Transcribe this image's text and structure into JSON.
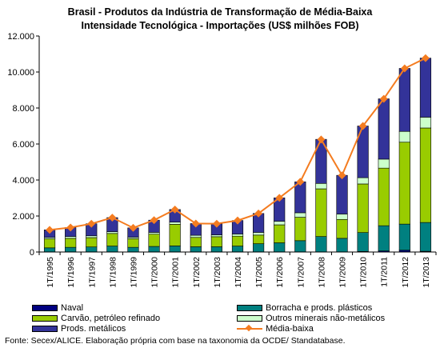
{
  "chart_data": {
    "type": "bar",
    "stacked": true,
    "title_line1": "Brasil - Produtos da Indústria de Transformação de Média-Baixa",
    "title_line2": "Intensidade Tecnológica - Importações (US$ milhões FOB)",
    "categories": [
      "1T/1995",
      "1T/1996",
      "1T/1997",
      "1T/1998",
      "1T/1999",
      "1T/2000",
      "1T/2001",
      "1T/2002",
      "1T/2003",
      "1T/2004",
      "1T/2005",
      "1T/2006",
      "1T/2007",
      "1T/2008",
      "1T/2009",
      "1T/2010",
      "1T/2011",
      "1T/2012",
      "1T/2013"
    ],
    "ylim": [
      0,
      12000
    ],
    "yticks": [
      0,
      2000,
      4000,
      6000,
      8000,
      10000,
      12000
    ],
    "ytick_labels": [
      "0",
      "2.000",
      "4.000",
      "6.000",
      "8.000",
      "10.000",
      "12.000"
    ],
    "grid": false,
    "legend_position": "bottom",
    "series": [
      {
        "name": "Naval",
        "color": "#000080",
        "values": [
          10,
          10,
          10,
          10,
          10,
          10,
          10,
          10,
          10,
          10,
          10,
          10,
          10,
          10,
          10,
          30,
          60,
          100,
          40
        ]
      },
      {
        "name": "Borracha e prods. plásticos",
        "color": "#008080",
        "values": [
          220,
          250,
          270,
          320,
          250,
          300,
          330,
          280,
          280,
          320,
          450,
          500,
          620,
          850,
          750,
          1050,
          1400,
          1450,
          1600
        ]
      },
      {
        "name": "Carvão, petróleo refinado",
        "color": "#99cc00",
        "values": [
          500,
          500,
          520,
          700,
          480,
          680,
          1200,
          520,
          560,
          550,
          480,
          1000,
          1300,
          2650,
          1050,
          2700,
          3200,
          4550,
          5250
        ]
      },
      {
        "name": "Outros minerais não-metálicos",
        "color": "#ccffcc",
        "values": [
          80,
          100,
          100,
          100,
          80,
          100,
          120,
          120,
          100,
          120,
          150,
          200,
          250,
          300,
          300,
          350,
          500,
          600,
          600
        ]
      },
      {
        "name": "Prods. metálicos",
        "color": "#333399",
        "values": [
          420,
          500,
          670,
          780,
          520,
          680,
          700,
          650,
          620,
          750,
          1050,
          1300,
          1720,
          2450,
          2150,
          2870,
          3350,
          3500,
          3280
        ]
      }
    ],
    "line": {
      "name": "Média-baixa",
      "color": "#f47c20",
      "values": [
        1230,
        1360,
        1570,
        1910,
        1340,
        1770,
        2360,
        1580,
        1570,
        1750,
        2140,
        3010,
        3900,
        6250,
        4260,
        7000,
        8510,
        10200,
        10770
      ]
    }
  },
  "legend": {
    "naval": "Naval",
    "borracha": "Borracha e prods. plásticos",
    "carvao": "Carvão, petróleo refinado",
    "outros": "Outros minerais não-metálicos",
    "metalicos": "Prods. metálicos",
    "media": "Média-baixa"
  },
  "source": "Fonte: Secex/ALICE. Elaboração própria com base na taxonomia da OCDE/ Standatabase."
}
